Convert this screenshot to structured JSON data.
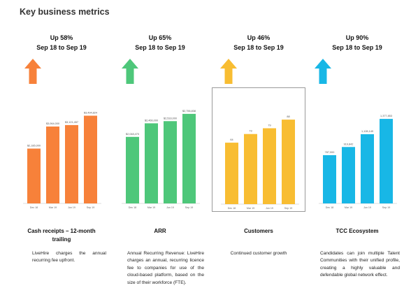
{
  "page": {
    "title": "Key business metrics"
  },
  "panels": [
    {
      "headline_line1": "Up 58%",
      "headline_line2": "Sep 18 to Sep 19",
      "color": "#f7813a",
      "name_line1": "Cash receipts – 12-month",
      "name_line2": "trailing",
      "description": "LiveHire charges the annual recurring fee upfront.",
      "desc_align": "justify",
      "arrow_icon": "up-arrow-icon"
    },
    {
      "headline_line1": "Up 65%",
      "headline_line2": "Sep 18 to Sep 19",
      "color": "#4ec77a",
      "name_line1": "ARR",
      "name_line2": "",
      "description": "Annual Recurring Revenue: LiveHire charges an annual, recurring licence fee to companies for use of the cloud-based platform, based on the size of their workforce (FTE).",
      "desc_align": "justify",
      "arrow_icon": "up-arrow-icon"
    },
    {
      "headline_line1": "Up 46%",
      "headline_line2": "Sep 18 to Sep 19",
      "color": "#f8bd32",
      "name_line1": "Customers",
      "name_line2": "",
      "description": "Continued customer growth",
      "desc_align": "center",
      "arrow_icon": "up-arrow-icon"
    },
    {
      "headline_line1": "Up 90%",
      "headline_line2": "Sep 18 to Sep 19",
      "color": "#18b7e6",
      "name_line1": "TCC Ecosystem",
      "name_line2": "",
      "description": "Candidates can join multiple Talent Communities with their unified profile, creating a highly valuable and defendable global network effect.",
      "desc_align": "justify",
      "arrow_icon": "up-arrow-icon"
    }
  ],
  "chart_data": [
    {
      "type": "bar",
      "categories": [
        "Dec 18",
        "Mar 19",
        "Jun 19",
        "Sep 19"
      ],
      "values": [
        2185000,
        3064000,
        3121457,
        3494824
      ],
      "value_labels": [
        "$2,185,000",
        "$3,064,000",
        "$3,121,457",
        "$3,494,824"
      ],
      "color": "#f7813a",
      "ylim": [
        0,
        4400000
      ],
      "grid": false
    },
    {
      "type": "bar",
      "categories": [
        "Dec 18",
        "Mar 19",
        "Jun 19",
        "Sep 19"
      ],
      "values": [
        2048470,
        2466000,
        2533000,
        2756838
      ],
      "value_labels": [
        "$2,048,470",
        "$2,466,000",
        "$2,533,000",
        "$2,756,838"
      ],
      "color": "#4ec77a",
      "ylim": [
        0,
        3400000
      ],
      "grid": false
    },
    {
      "type": "bar",
      "categories": [
        "Dec 18",
        "Mar 19",
        "Jun 19",
        "Sep 19"
      ],
      "values": [
        64,
        73,
        79,
        88
      ],
      "value_labels": [
        "64",
        "73",
        "79",
        "88"
      ],
      "color": "#f8bd32",
      "ylim": [
        0,
        115
      ],
      "grid": false
    },
    {
      "type": "bar",
      "categories": [
        "Dec 18",
        "Mar 19",
        "Jun 19",
        "Sep 19"
      ],
      "values": [
        787000,
        919842,
        1128149,
        1377853
      ],
      "value_labels": [
        "787,000",
        "919,842",
        "1,128,149",
        "1,377,853"
      ],
      "color": "#18b7e6",
      "ylim": [
        0,
        1800000
      ],
      "grid": false
    }
  ]
}
